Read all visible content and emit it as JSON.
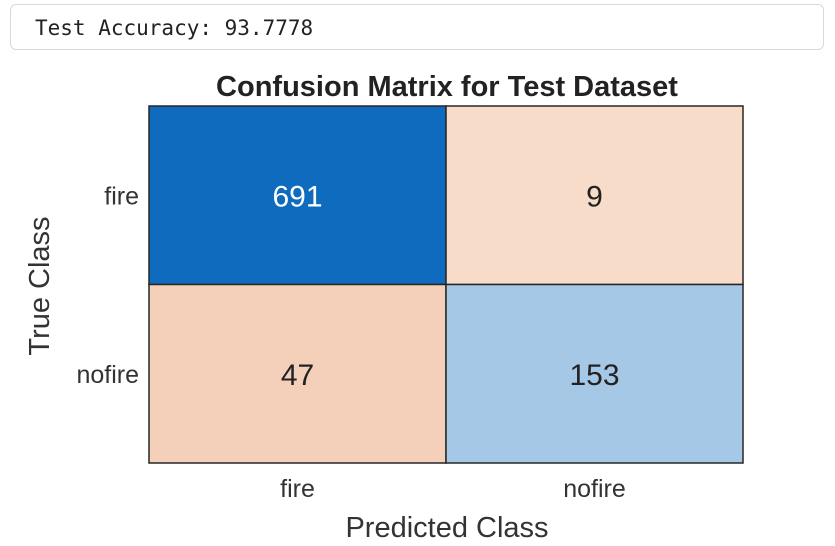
{
  "console": {
    "output": "Test Accuracy: 93.7778"
  },
  "chart_data": {
    "type": "heatmap",
    "title": "Confusion Matrix for Test Dataset",
    "xlabel": "Predicted Class",
    "ylabel": "True Class",
    "x_categories": [
      "fire",
      "nofire"
    ],
    "y_categories": [
      "fire",
      "nofire"
    ],
    "values": [
      [
        691,
        9
      ],
      [
        47,
        153
      ]
    ],
    "cell_colors": [
      [
        "#0f6bbd",
        "#f6dcc9"
      ],
      [
        "#f4d0ba",
        "#a6c8e7"
      ]
    ],
    "text_colors": [
      [
        "#ffffff",
        "#222222"
      ],
      [
        "#222222",
        "#222222"
      ]
    ],
    "grid": false,
    "legend": "none"
  }
}
